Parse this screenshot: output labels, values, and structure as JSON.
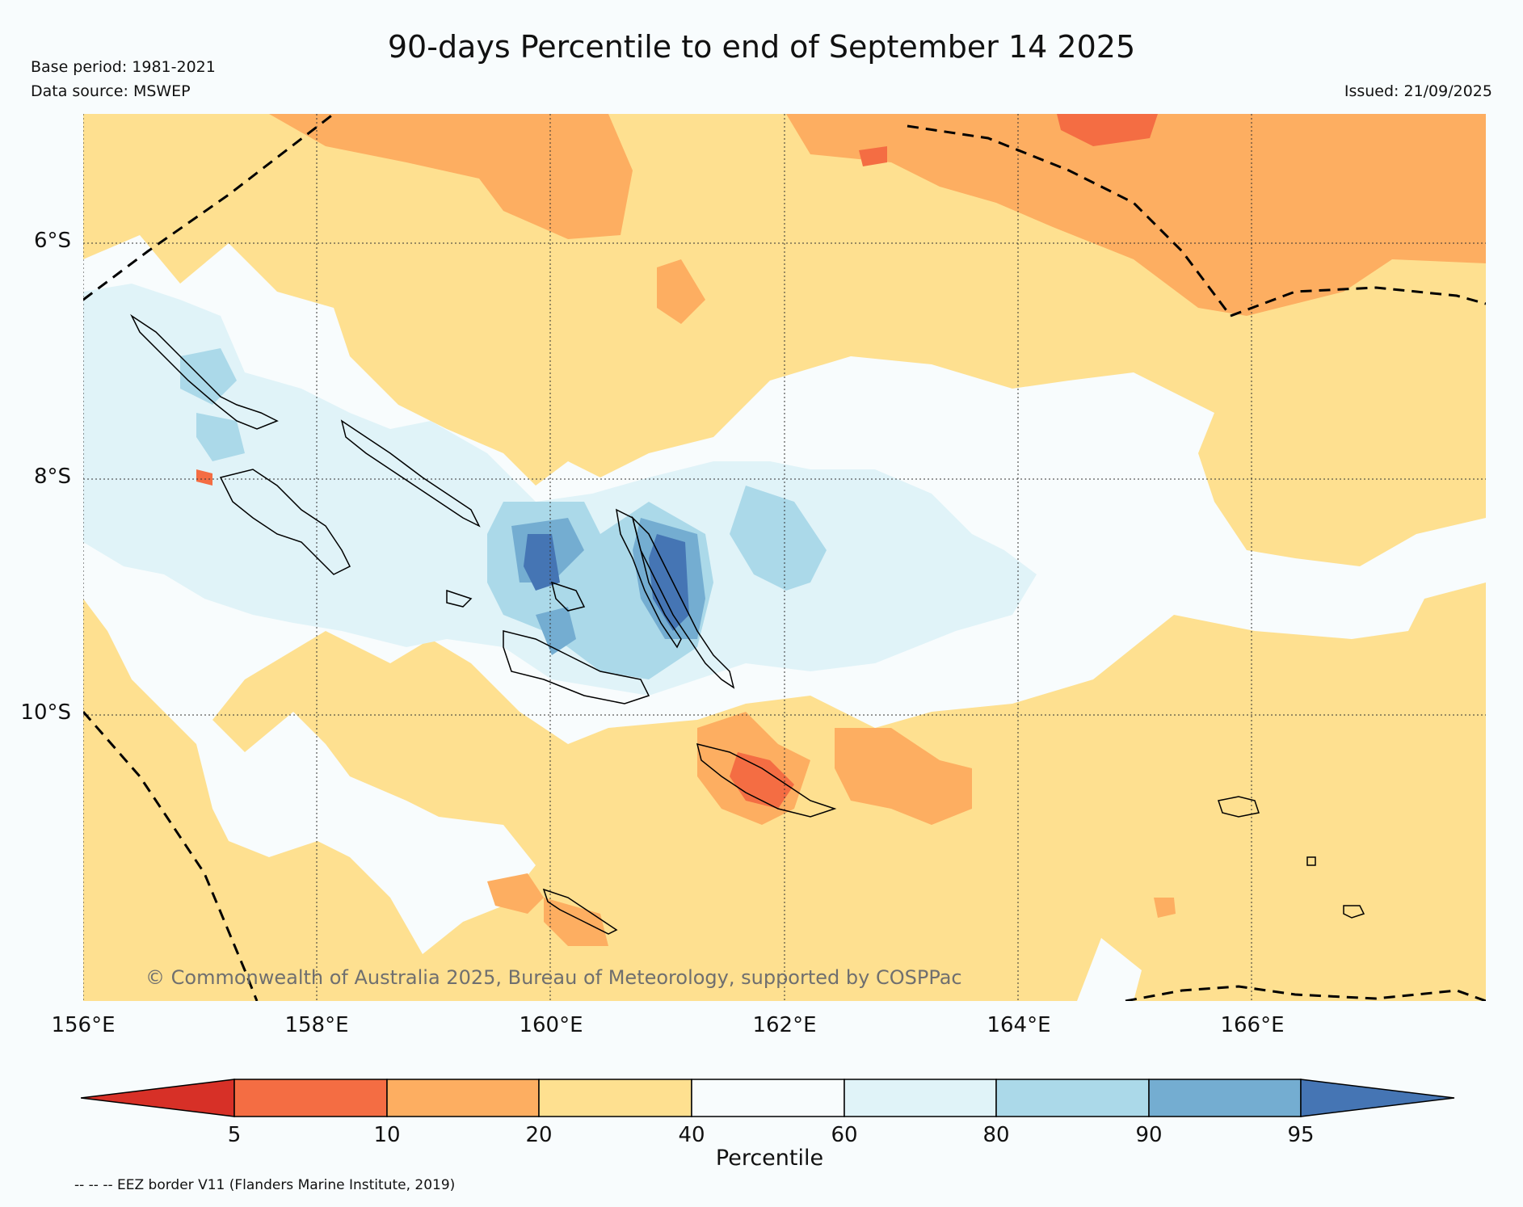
{
  "header": {
    "title": "90-days Percentile to end of September 14 2025",
    "base_period": "Base period: 1981-2021",
    "data_source": "Data source: MSWEP",
    "issued": "Issued: 21/09/2025"
  },
  "map": {
    "lat_labels": [
      "6°S",
      "8°S",
      "10°S"
    ],
    "lon_labels": [
      "156°E",
      "158°E",
      "160°E",
      "162°E",
      "164°E",
      "166°E"
    ],
    "copyright": "© Commonwealth of Australia 2025, Bureau of Meteorology, supported by COSPPac"
  },
  "colorbar": {
    "title": "Percentile",
    "tick_labels": [
      "5",
      "10",
      "20",
      "40",
      "60",
      "80",
      "90",
      "95"
    ],
    "colors": [
      "#d73027",
      "#f46d43",
      "#fdae61",
      "#fee090",
      "#f8fcfd",
      "#e0f3f8",
      "#abd9e9",
      "#74add1",
      "#4575b4"
    ]
  },
  "footer": {
    "eez_note": "-- -- -- EEZ border V11 (Flanders Marine Institute, 2019)"
  }
}
